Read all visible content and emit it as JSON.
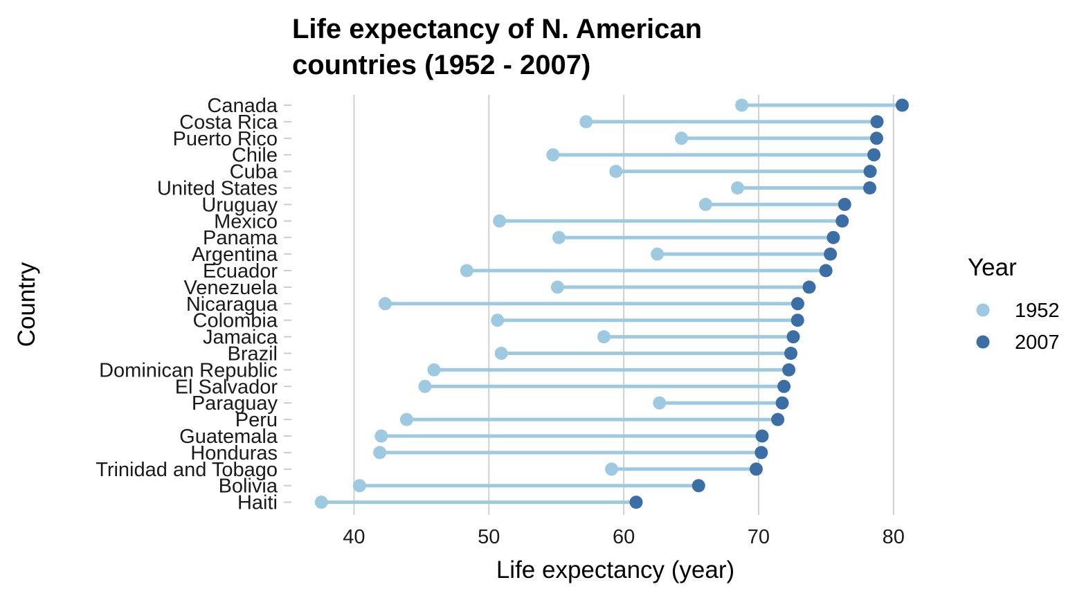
{
  "chart_data": {
    "type": "dumbbell",
    "title_lines": [
      "Life expectancy of N. American",
      "countries (1952 - 2007)"
    ],
    "xlabel": "Life expectancy (year)",
    "ylabel": "Country",
    "xlim": [
      35,
      81.5
    ],
    "xticks": [
      40,
      50,
      60,
      70,
      80
    ],
    "grid": "vertical major",
    "legend": {
      "title": "Year",
      "position": "right",
      "entries": [
        {
          "label": "1952",
          "color": "#9ecae1"
        },
        {
          "label": "2007",
          "color": "#3a6ea5"
        }
      ]
    },
    "colors": {
      "segment": "#9ecae1",
      "y1952": "#9ecae1",
      "y2007": "#3a6ea5",
      "grid": "#d0d0d0"
    },
    "countries": [
      {
        "name": "Canada",
        "y1952": 68.75,
        "y2007": 80.65
      },
      {
        "name": "Costa Rica",
        "y1952": 57.21,
        "y2007": 78.78
      },
      {
        "name": "Puerto Rico",
        "y1952": 64.28,
        "y2007": 78.75
      },
      {
        "name": "Chile",
        "y1952": 54.75,
        "y2007": 78.55
      },
      {
        "name": "Cuba",
        "y1952": 59.42,
        "y2007": 78.27
      },
      {
        "name": "United States",
        "y1952": 68.44,
        "y2007": 78.24
      },
      {
        "name": "Uruguay",
        "y1952": 66.07,
        "y2007": 76.38
      },
      {
        "name": "Mexico",
        "y1952": 50.79,
        "y2007": 76.2
      },
      {
        "name": "Panama",
        "y1952": 55.19,
        "y2007": 75.54
      },
      {
        "name": "Argentina",
        "y1952": 62.49,
        "y2007": 75.32
      },
      {
        "name": "Ecuador",
        "y1952": 48.36,
        "y2007": 74.99
      },
      {
        "name": "Venezuela",
        "y1952": 55.09,
        "y2007": 73.75
      },
      {
        "name": "Nicaragua",
        "y1952": 42.31,
        "y2007": 72.9
      },
      {
        "name": "Colombia",
        "y1952": 50.64,
        "y2007": 72.89
      },
      {
        "name": "Jamaica",
        "y1952": 58.53,
        "y2007": 72.57
      },
      {
        "name": "Brazil",
        "y1952": 50.92,
        "y2007": 72.39
      },
      {
        "name": "Dominican Republic",
        "y1952": 45.93,
        "y2007": 72.24
      },
      {
        "name": "El Salvador",
        "y1952": 45.26,
        "y2007": 71.88
      },
      {
        "name": "Paraguay",
        "y1952": 62.65,
        "y2007": 71.75
      },
      {
        "name": "Peru",
        "y1952": 43.9,
        "y2007": 71.42
      },
      {
        "name": "Guatemala",
        "y1952": 42.02,
        "y2007": 70.26
      },
      {
        "name": "Honduras",
        "y1952": 41.91,
        "y2007": 70.2
      },
      {
        "name": "Trinidad and Tobago",
        "y1952": 59.1,
        "y2007": 69.82
      },
      {
        "name": "Bolivia",
        "y1952": 40.41,
        "y2007": 65.55
      },
      {
        "name": "Haiti",
        "y1952": 37.58,
        "y2007": 60.92
      }
    ]
  }
}
